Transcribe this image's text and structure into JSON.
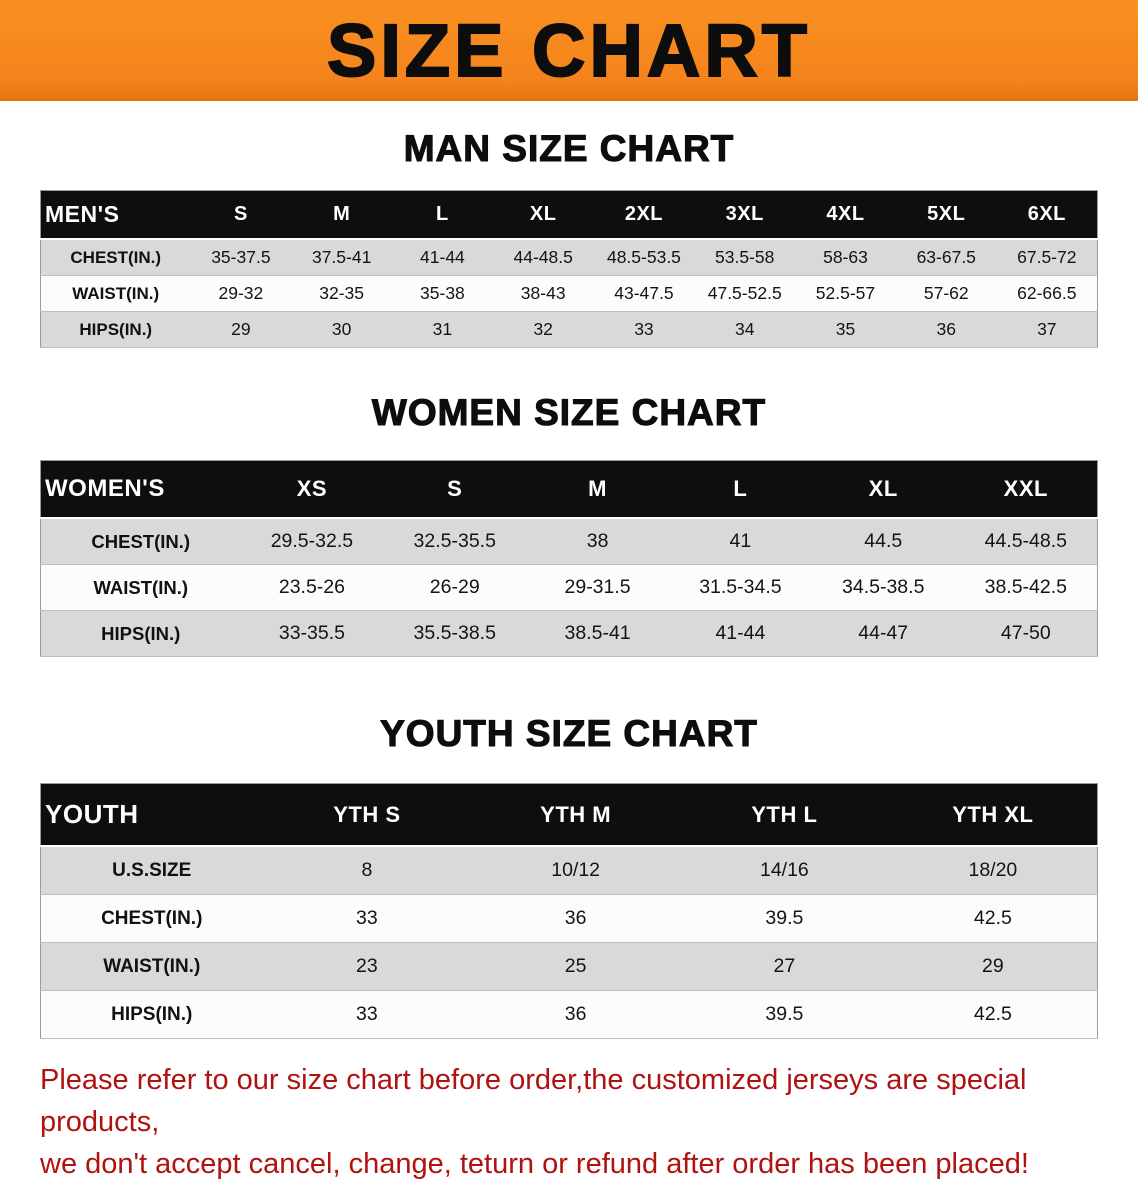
{
  "banner": {
    "title": "SIZE CHART",
    "background_color": "#F5831D",
    "text_color": "#0D0D0D"
  },
  "colors": {
    "table_header_bg": "#0E0E0E",
    "table_header_text": "#FFFFFF",
    "row_shaded_bg": "#D9D9D9",
    "row_plain_bg": "#FCFCFC",
    "disclaimer_text": "#B01212"
  },
  "sections": [
    {
      "id": "men",
      "heading": "MAN SIZE CHART",
      "table": {
        "header": [
          "MEN'S",
          "S",
          "M",
          "L",
          "XL",
          "2XL",
          "3XL",
          "4XL",
          "5XL",
          "6XL"
        ],
        "rows": [
          [
            "CHEST(IN.)",
            "35-37.5",
            "37.5-41",
            "41-44",
            "44-48.5",
            "48.5-53.5",
            "53.5-58",
            "58-63",
            "63-67.5",
            "67.5-72"
          ],
          [
            "WAIST(IN.)",
            "29-32",
            "32-35",
            "35-38",
            "38-43",
            "43-47.5",
            "47.5-52.5",
            "52.5-57",
            "57-62",
            "62-66.5"
          ],
          [
            "HIPS(IN.)",
            "29",
            "30",
            "31",
            "32",
            "33",
            "34",
            "35",
            "36",
            "37"
          ]
        ]
      }
    },
    {
      "id": "women",
      "heading": "WOMEN SIZE CHART",
      "table": {
        "header": [
          "WOMEN'S",
          "XS",
          "S",
          "M",
          "L",
          "XL",
          "XXL"
        ],
        "rows": [
          [
            "CHEST(IN.)",
            "29.5-32.5",
            "32.5-35.5",
            "38",
            "41",
            "44.5",
            "44.5-48.5"
          ],
          [
            "WAIST(IN.)",
            "23.5-26",
            "26-29",
            "29-31.5",
            "31.5-34.5",
            "34.5-38.5",
            "38.5-42.5"
          ],
          [
            "HIPS(IN.)",
            "33-35.5",
            "35.5-38.5",
            "38.5-41",
            "41-44",
            "44-47",
            "47-50"
          ]
        ]
      }
    },
    {
      "id": "youth",
      "heading": "YOUTH SIZE CHART",
      "table": {
        "header": [
          "YOUTH",
          "YTH S",
          "YTH M",
          "YTH L",
          "YTH XL"
        ],
        "rows": [
          [
            "U.S.SIZE",
            "8",
            "10/12",
            "14/16",
            "18/20"
          ],
          [
            "CHEST(IN.)",
            "33",
            "36",
            "39.5",
            "42.5"
          ],
          [
            "WAIST(IN.)",
            "23",
            "25",
            "27",
            "29"
          ],
          [
            "HIPS(IN.)",
            "33",
            "36",
            "39.5",
            "42.5"
          ]
        ]
      }
    }
  ],
  "disclaimer": {
    "line1": "Please refer to our size chart before order,the customized jerseys are special products,",
    "line2": "we don't accept cancel, change, teturn or refund after order has been placed!"
  }
}
